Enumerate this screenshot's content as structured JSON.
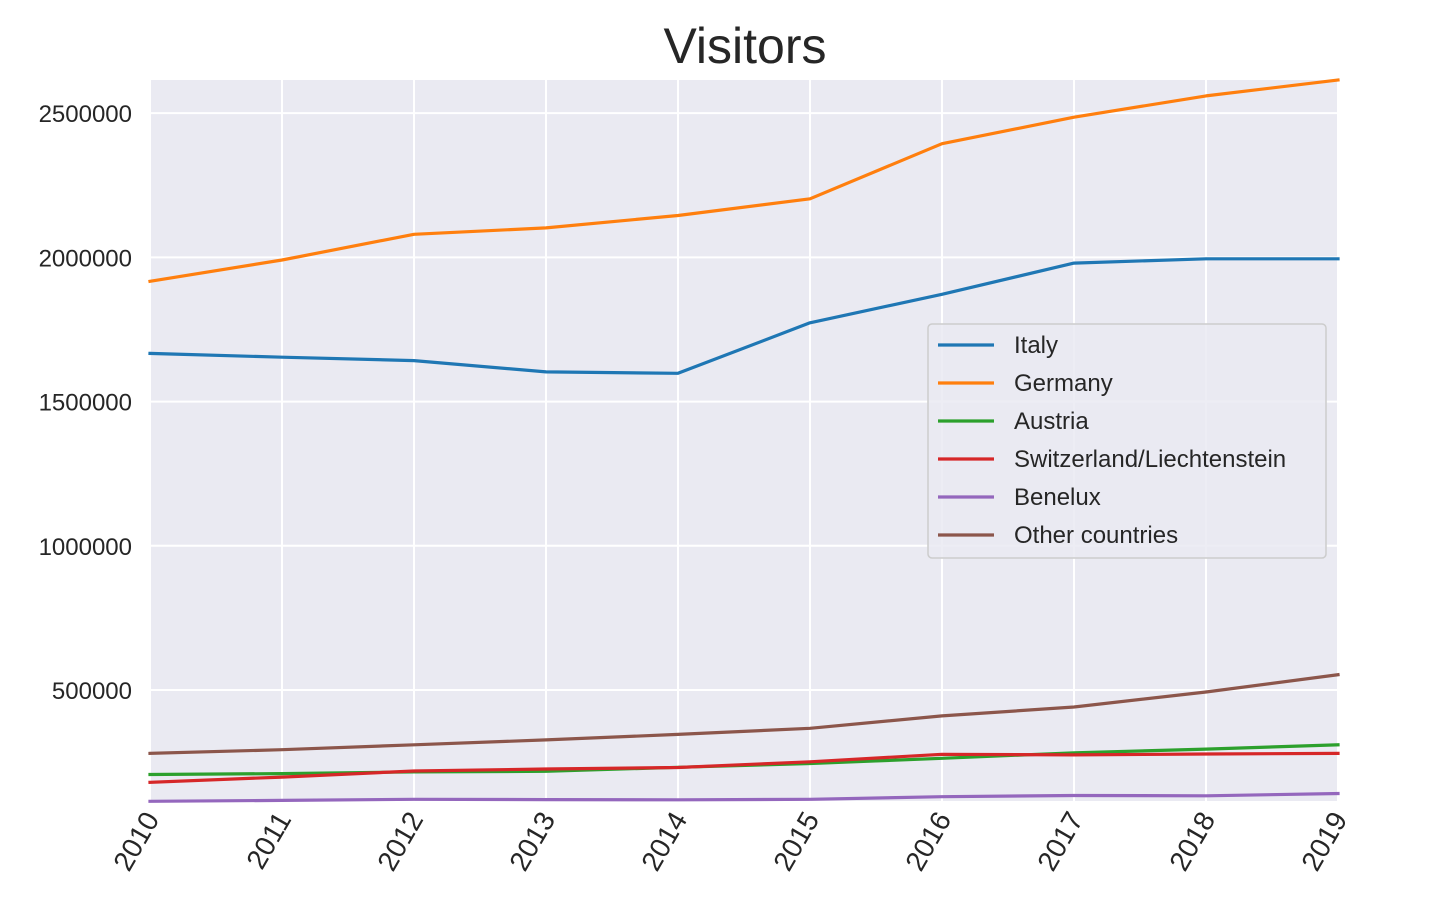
{
  "chart_data": {
    "type": "line",
    "title": "Visitors",
    "xlabel": "",
    "ylabel": "",
    "x": [
      "2010",
      "2011",
      "2012",
      "2013",
      "2014",
      "2015",
      "2016",
      "2017",
      "2018",
      "2019"
    ],
    "xlim": [
      2010,
      2019
    ],
    "ylim": [
      115000,
      2615000
    ],
    "yticks": [
      500000,
      1000000,
      1500000,
      2000000,
      2500000
    ],
    "ytick_labels": [
      "500000",
      "1000000",
      "1500000",
      "2000000",
      "2500000"
    ],
    "grid": true,
    "legend_position": "center-right",
    "background_color": "#EAEAF2",
    "grid_color": "#FFFFFF",
    "series": [
      {
        "name": "Italy",
        "color": "#1F77B4",
        "values": [
          1667000,
          1654000,
          1642000,
          1603000,
          1598000,
          1773000,
          1872000,
          1980000,
          1995000,
          1995000
        ]
      },
      {
        "name": "Germany",
        "color": "#FF7F0E",
        "values": [
          1917000,
          1991000,
          2080000,
          2102000,
          2145000,
          2203000,
          2394000,
          2486000,
          2560000,
          2615000
        ]
      },
      {
        "name": "Austria",
        "color": "#2CA02C",
        "values": [
          207000,
          210000,
          216000,
          218000,
          232000,
          245000,
          263000,
          282000,
          295000,
          310000
        ]
      },
      {
        "name": "Switzerland/Liechtenstein",
        "color": "#D62728",
        "values": [
          180000,
          198000,
          219000,
          226000,
          231000,
          251000,
          277000,
          275000,
          278000,
          280000
        ]
      },
      {
        "name": "Benelux",
        "color": "#9467BD",
        "values": [
          114000,
          117000,
          121000,
          120000,
          119000,
          121000,
          130000,
          134000,
          133000,
          141000
        ]
      },
      {
        "name": "Other countries",
        "color": "#8C564B",
        "values": [
          280000,
          293000,
          310000,
          327000,
          346000,
          367000,
          410000,
          441000,
          493000,
          553000
        ]
      }
    ]
  }
}
